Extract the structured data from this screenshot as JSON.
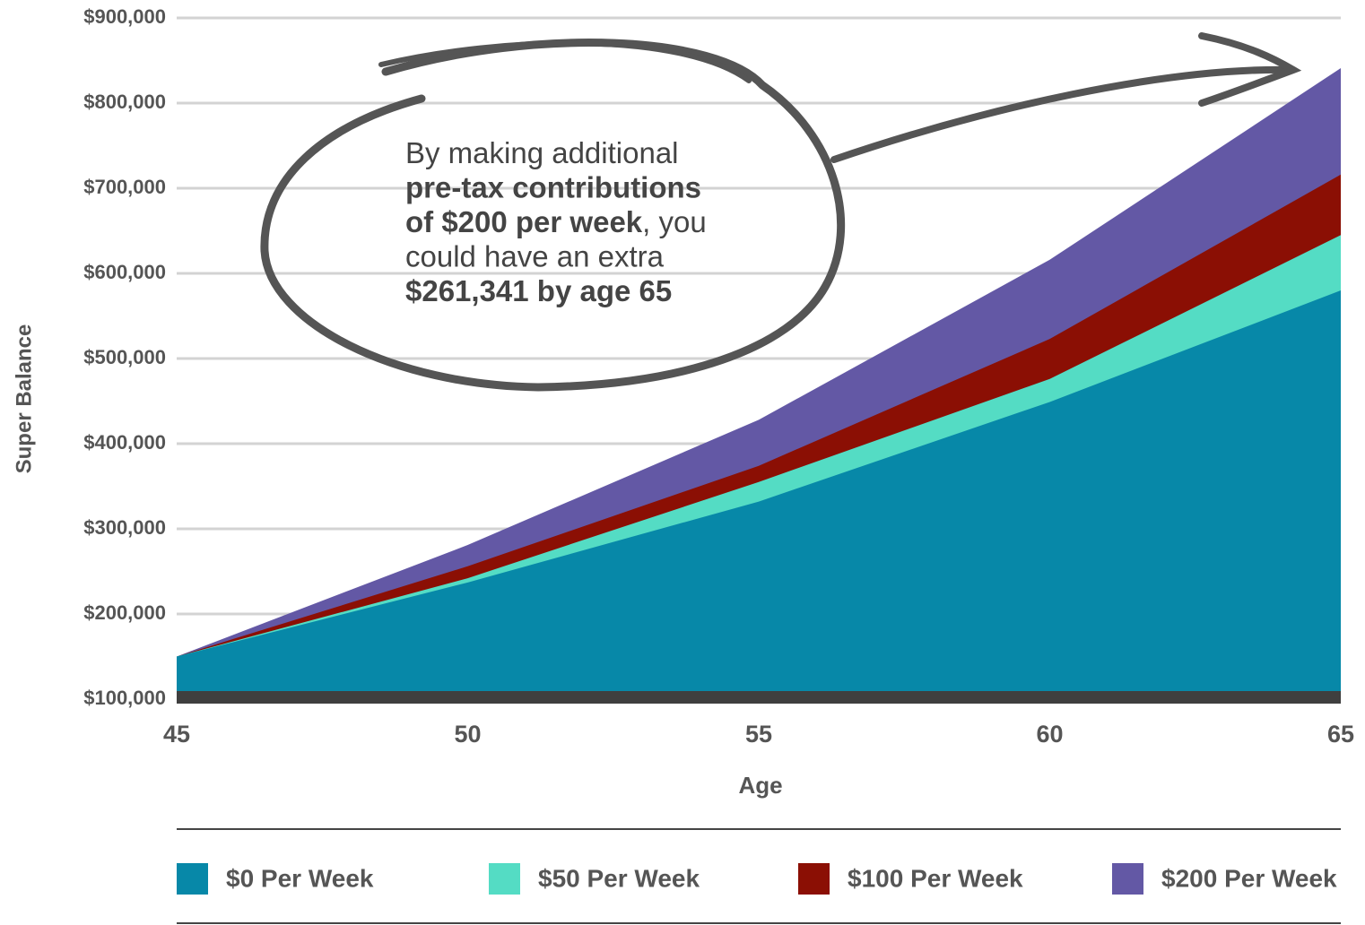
{
  "chart_data": {
    "type": "area",
    "y_label": "Super Balance",
    "x_label": "Age",
    "x": [
      45,
      50,
      55,
      60,
      65
    ],
    "series": [
      {
        "name": "$0 Per Week",
        "color": "#0788a8",
        "values": [
          150000,
          237000,
          332000,
          449000,
          580000
        ]
      },
      {
        "name": "$50 Per Week",
        "color": "#54dcc4",
        "values": [
          150000,
          242000,
          355000,
          476000,
          645000
        ]
      },
      {
        "name": "$100 Per Week",
        "color": "#8b0f04",
        "values": [
          150000,
          256000,
          374000,
          523000,
          716000
        ]
      },
      {
        "name": "$200 Per Week",
        "color": "#6358a5",
        "values": [
          150000,
          281000,
          428000,
          616000,
          841000
        ]
      }
    ],
    "xlim": [
      45,
      65
    ],
    "xticks": [
      45,
      50,
      55,
      60,
      65
    ],
    "ylim": [
      100000,
      900000
    ],
    "yticks": [
      {
        "value": 100000,
        "label": "$100,000"
      },
      {
        "value": 200000,
        "label": "$200,000"
      },
      {
        "value": 300000,
        "label": "$300,000"
      },
      {
        "value": 400000,
        "label": "$400,000"
      },
      {
        "value": 500000,
        "label": "$500,000"
      },
      {
        "value": 600000,
        "label": "$600,000"
      },
      {
        "value": 700000,
        "label": "$700,000"
      },
      {
        "value": 800000,
        "label": "$800,000"
      },
      {
        "value": 900000,
        "label": "$900,000"
      }
    ],
    "grid": true,
    "annotation": [
      [
        {
          "text": "By making additional",
          "bold": false
        }
      ],
      [
        {
          "text": "pre-tax contributions",
          "bold": true
        }
      ],
      [
        {
          "text": "of $200 per week",
          "bold": true
        },
        {
          "text": ", you",
          "bold": false
        }
      ],
      [
        {
          "text": "could have an extra",
          "bold": false
        }
      ],
      [
        {
          "text": "$261,341 by age 65",
          "bold": true
        }
      ]
    ]
  }
}
